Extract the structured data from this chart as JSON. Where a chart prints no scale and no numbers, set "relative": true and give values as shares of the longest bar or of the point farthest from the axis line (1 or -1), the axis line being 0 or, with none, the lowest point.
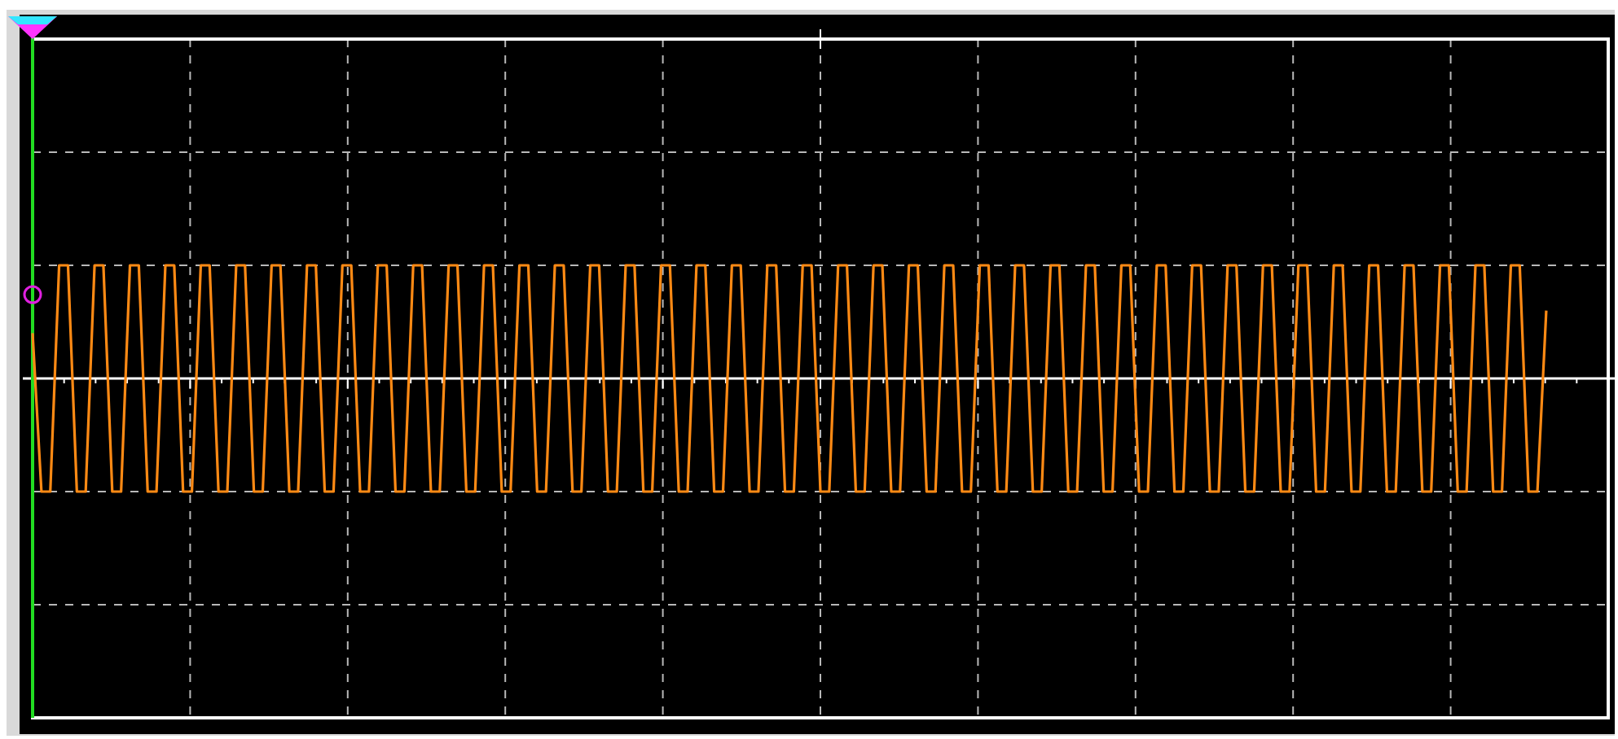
{
  "chart_data": {
    "type": "line",
    "relative": true,
    "grid": true,
    "line_style": "solid",
    "categories": [
      null,
      null,
      null,
      null,
      null,
      null,
      null,
      null,
      null,
      null,
      null,
      null,
      null,
      null,
      null,
      null,
      null,
      null,
      null,
      null,
      null,
      null,
      null,
      null,
      null,
      null,
      null,
      null,
      null,
      null,
      null,
      null,
      null,
      null,
      null,
      null,
      null,
      null,
      null,
      null,
      null,
      null,
      null,
      null,
      null,
      null,
      null,
      null,
      null,
      null,
      null,
      null,
      null,
      null,
      null,
      null,
      null,
      null,
      null,
      null,
      null,
      null,
      null,
      null,
      null,
      null,
      null,
      null,
      null,
      null,
      null,
      null,
      null,
      null,
      null,
      null,
      null,
      null,
      null,
      null,
      null,
      null,
      null,
      null,
      null,
      null,
      null,
      null,
      null,
      null,
      null,
      null,
      null,
      null,
      null,
      null,
      null,
      null,
      null,
      null,
      null,
      null,
      null,
      null,
      null,
      null,
      null,
      null,
      null,
      null,
      null,
      null,
      null,
      null,
      null,
      null,
      null,
      null,
      null,
      null,
      null,
      null,
      null,
      null,
      null,
      null,
      null,
      null,
      null,
      null,
      null,
      null,
      null,
      null,
      null,
      null,
      null,
      null,
      null,
      null,
      null,
      null,
      null,
      null,
      null,
      null,
      null,
      null,
      null,
      null,
      null,
      null,
      null,
      null,
      null,
      null,
      null,
      null,
      null,
      null,
      null,
      null,
      null,
      null,
      null,
      null,
      null,
      null,
      null,
      null,
      null,
      null,
      null,
      null,
      null,
      null,
      null,
      null,
      null
    ],
    "series": [
      {
        "color": "#ff8a14",
        "values": [
          0.4,
          -1,
          -1,
          1,
          1,
          -1,
          -1,
          1,
          1,
          -1,
          -1,
          1,
          1,
          -1,
          -1,
          1,
          1,
          -1,
          -1,
          1,
          1,
          -1,
          -1,
          1,
          1,
          -1,
          -1,
          1,
          1,
          -1,
          -1,
          1,
          1,
          -1,
          -1,
          1,
          1,
          -1,
          -1,
          1,
          1,
          -1,
          -1,
          1,
          1,
          -1,
          -1,
          1,
          1,
          -1,
          -1,
          1,
          1,
          -1,
          -1,
          1,
          1,
          -1,
          -1,
          1,
          1,
          -1,
          -1,
          1,
          1,
          -1,
          -1,
          1,
          1,
          -1,
          -1,
          1,
          1,
          -1,
          -1,
          1,
          1,
          -1,
          -1,
          1,
          1,
          -1,
          -1,
          1,
          1,
          -1,
          -1,
          1,
          1,
          -1,
          -1,
          1,
          1,
          -1,
          -1,
          1,
          1,
          -1,
          -1,
          1,
          1,
          -1,
          -1,
          1,
          1,
          -1,
          -1,
          1,
          1,
          -1,
          -1,
          1,
          1,
          -1,
          -1,
          1,
          1,
          -1,
          -1,
          1,
          1,
          -1,
          -1,
          1,
          1,
          -1,
          -1,
          1,
          1,
          -1,
          -1,
          1,
          1,
          -1,
          -1,
          1,
          1,
          -1,
          -1,
          1,
          1,
          -1,
          -1,
          1,
          1,
          -1,
          -1,
          1,
          1,
          -1,
          -1,
          1,
          1,
          -1,
          -1,
          1,
          1,
          -1,
          -1,
          1,
          1,
          -1,
          -1,
          1,
          1,
          -1,
          -1,
          1,
          1,
          -1,
          -1,
          0.6,
          null,
          null,
          null,
          null,
          null,
          null,
          null
        ]
      }
    ]
  }
}
